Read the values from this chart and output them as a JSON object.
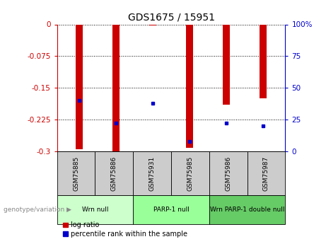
{
  "title": "GDS1675 / 15951",
  "samples": [
    "GSM75885",
    "GSM75886",
    "GSM75931",
    "GSM75985",
    "GSM75986",
    "GSM75987"
  ],
  "log_ratios": [
    -0.295,
    -0.3,
    -0.002,
    -0.292,
    -0.19,
    -0.175
  ],
  "percentile_ranks": [
    40,
    22,
    38,
    8,
    22,
    20
  ],
  "groups": [
    {
      "label": "Wrn null",
      "start": 0,
      "end": 2,
      "color": "#ccffcc"
    },
    {
      "label": "PARP-1 null",
      "start": 2,
      "end": 4,
      "color": "#99ff99"
    },
    {
      "label": "Wrn PARP-1 double null",
      "start": 4,
      "end": 6,
      "color": "#66cc66"
    }
  ],
  "ylim_left": [
    -0.3,
    0
  ],
  "yticks_left": [
    0,
    -0.075,
    -0.15,
    -0.225,
    -0.3
  ],
  "ytick_labels_left": [
    "0",
    "-0.075",
    "-0.15",
    "-0.225",
    "-0.3"
  ],
  "ylim_right": [
    0,
    100
  ],
  "yticks_right": [
    0,
    25,
    50,
    75,
    100
  ],
  "ytick_labels_right": [
    "0",
    "25",
    "50",
    "75",
    "100%"
  ],
  "bar_color": "#cc0000",
  "dot_color": "#0000cc",
  "bar_width": 0.18,
  "legend_labels": [
    "log ratio",
    "percentile rank within the sample"
  ],
  "legend_colors": [
    "#cc0000",
    "#0000cc"
  ],
  "group_label": "genotype/variation",
  "left_axis_color": "#cc0000",
  "right_axis_color": "#0000cc",
  "grid_color": "#000000",
  "sample_box_color": "#cccccc",
  "sample_text_color": "#000000",
  "bg_color": "#ffffff"
}
